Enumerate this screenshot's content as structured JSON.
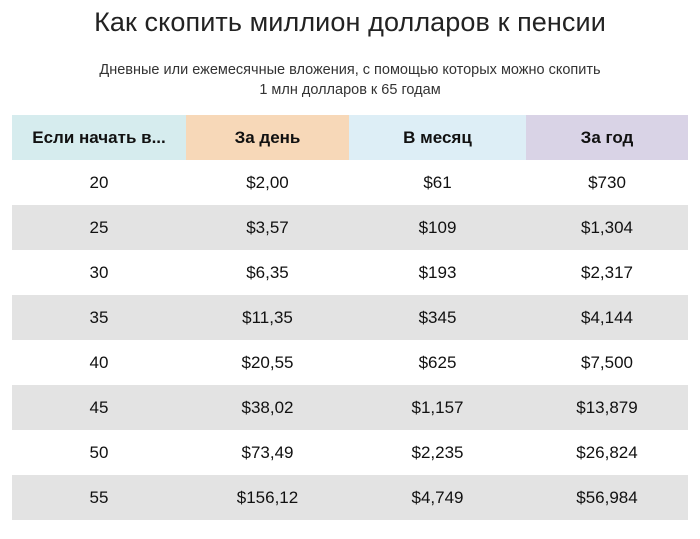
{
  "title": "Как скопить миллион долларов к пенсии",
  "subtitle_line1": "Дневные или ежемесячные вложения, с помощью которых можно скопить",
  "subtitle_line2": "1 млн долларов  к 65 годам",
  "colors": {
    "header_age": "#d6ecee",
    "header_day": "#f7d8b8",
    "header_month": "#ddeef6",
    "header_year": "#d9d3e6",
    "row_shade": "#e3e3e3"
  },
  "chart_data": {
    "type": "table",
    "title": "Как скопить миллион долларов к пенсии",
    "columns": [
      "Если начать в...",
      "За день",
      "В месяц",
      "За год"
    ],
    "rows": [
      [
        "20",
        "$2,00",
        "$61",
        "$730"
      ],
      [
        "25",
        "$3,57",
        "$109",
        "$1,304"
      ],
      [
        "30",
        "$6,35",
        "$193",
        "$2,317"
      ],
      [
        "35",
        "$11,35",
        "$345",
        "$4,144"
      ],
      [
        "40",
        "$20,55",
        "$625",
        "$7,500"
      ],
      [
        "45",
        "$38,02",
        "$1,157",
        "$13,879"
      ],
      [
        "50",
        "$73,49",
        "$2,235",
        "$26,824"
      ],
      [
        "55",
        "$156,12",
        "$4,749",
        "$56,984"
      ]
    ]
  }
}
